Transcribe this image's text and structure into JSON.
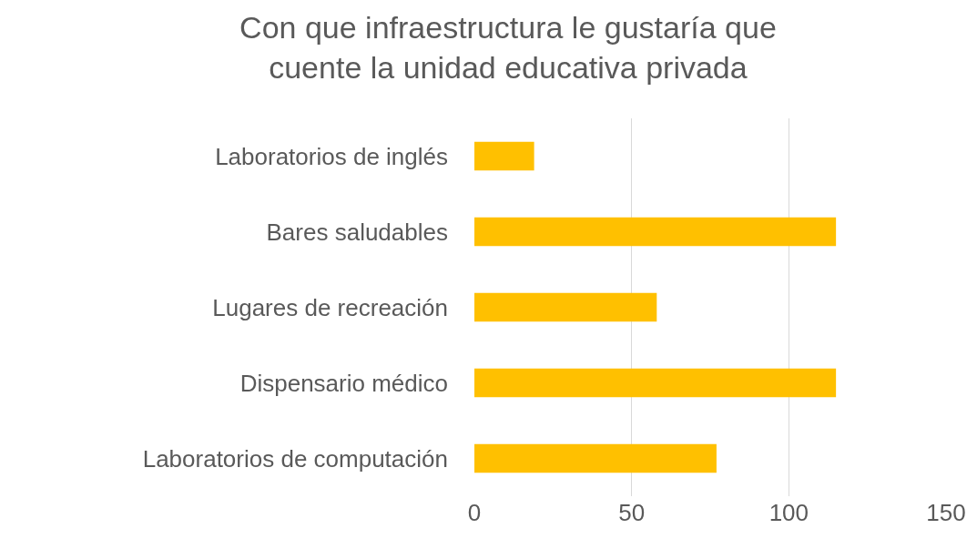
{
  "chart_data": {
    "type": "bar",
    "orientation": "horizontal",
    "title": "Con que infraestructura le gustaría que cuente la unidad educativa privada",
    "categories": [
      "Laboratorios de inglés",
      "Bares saludables",
      "Lugares de recreación",
      "Dispensario médico",
      "Laboratorios de computación"
    ],
    "values": [
      19,
      115,
      58,
      115,
      77
    ],
    "color": "#ffc000",
    "xlim": [
      0,
      150
    ],
    "xticks": [
      0,
      50,
      100,
      150
    ],
    "grid": "x"
  }
}
